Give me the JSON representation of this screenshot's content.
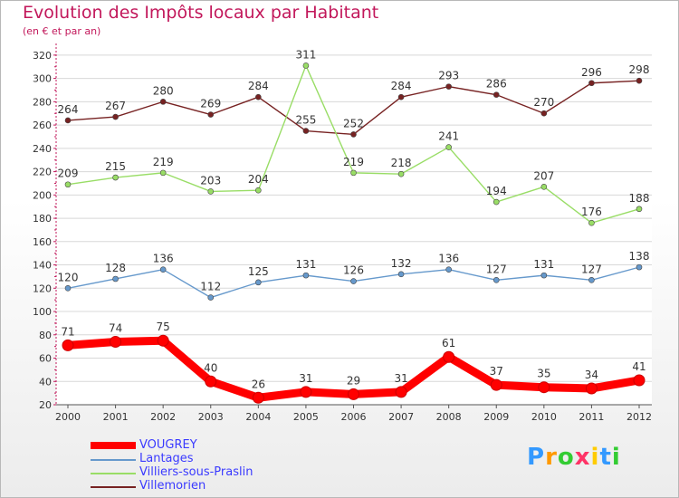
{
  "chart_data": {
    "type": "line",
    "title": "Evolution des Impôts locaux par Habitant",
    "subtitle": "(en € et par an)",
    "xlabel": "",
    "ylabel": "",
    "ylim": [
      20,
      320
    ],
    "yticks": [
      "20",
      "40",
      "60",
      "80",
      "100",
      "120",
      "140",
      "160",
      "180",
      "200",
      "220",
      "240",
      "260",
      "280",
      "300",
      "320"
    ],
    "categories": [
      "2000",
      "2001",
      "2002",
      "2003",
      "2004",
      "2005",
      "2006",
      "2007",
      "2008",
      "2009",
      "2010",
      "2011",
      "2012"
    ],
    "grid": "horizontal",
    "legend_position": "bottom-left",
    "series": [
      {
        "name": "VOUGREY",
        "color": "#ff0000",
        "values": [
          71,
          74,
          75,
          40,
          26,
          31,
          29,
          31,
          61,
          37,
          35,
          34,
          41
        ]
      },
      {
        "name": "Lantages",
        "color": "#6699cc",
        "values": [
          120,
          128,
          136,
          112,
          125,
          131,
          126,
          132,
          136,
          127,
          131,
          127,
          138
        ]
      },
      {
        "name": "Villiers-sous-Praslin",
        "color": "#99dd66",
        "values": [
          209,
          215,
          219,
          203,
          204,
          311,
          219,
          218,
          241,
          194,
          207,
          176,
          188
        ]
      },
      {
        "name": "Villemorien",
        "color": "#772222",
        "values": [
          264,
          267,
          280,
          269,
          284,
          255,
          252,
          284,
          293,
          286,
          270,
          296,
          298
        ]
      }
    ]
  },
  "logo": {
    "letters": [
      "P",
      "r",
      "o",
      "x",
      "i",
      "t",
      "i"
    ],
    "colors": [
      "#3399ff",
      "#ff9900",
      "#33cc33",
      "#ff3366",
      "#ffcc00",
      "#3399ff",
      "#33cc33"
    ]
  }
}
